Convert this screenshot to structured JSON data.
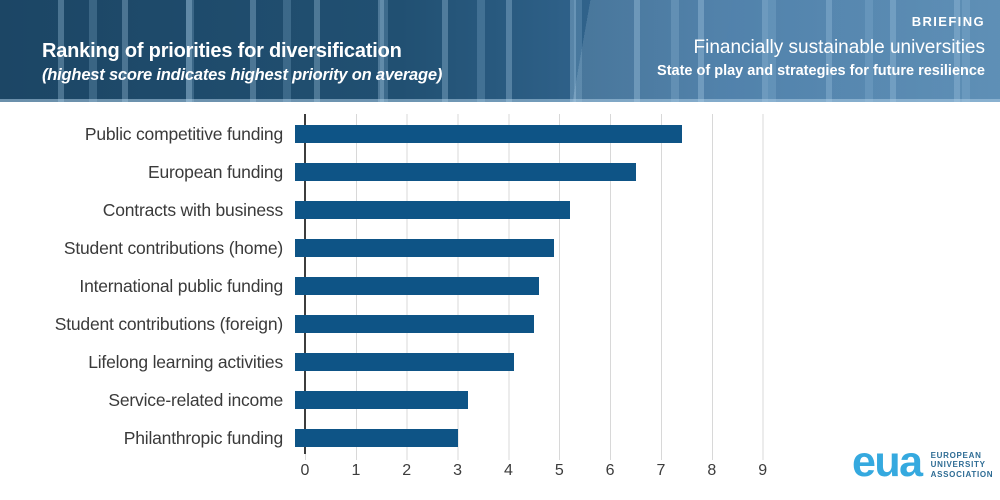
{
  "header": {
    "kicker": "BRIEFING",
    "title": "Ranking of priorities for diversification",
    "subtitle": "(highest score indicates highest priority on average)",
    "publication_title": "Financially sustainable universities",
    "publication_subtitle": "State of play and strategies for future resilience"
  },
  "chart_data": {
    "type": "bar",
    "orientation": "horizontal",
    "title": "Ranking of priorities for diversification",
    "subtitle": "(highest score indicates highest priority on average)",
    "categories": [
      "Public competitive funding",
      "European funding",
      "Contracts with business",
      "Student contributions (home)",
      "International public funding",
      "Student contributions (foreign)",
      "Lifelong learning activities",
      "Service-related income",
      "Philanthropic funding"
    ],
    "values": [
      7.6,
      6.7,
      5.4,
      5.1,
      4.8,
      4.7,
      4.3,
      3.4,
      3.2
    ],
    "xlabel": "",
    "ylabel": "",
    "xlim": [
      0,
      9
    ],
    "xticks": [
      "0",
      "1",
      "2",
      "3",
      "4",
      "5",
      "6",
      "7",
      "8",
      "9"
    ],
    "grid": true,
    "bar_color": "#0e5486",
    "gridline_color": "#d8d8d8",
    "axis_color": "#3d3d3d",
    "label_color": "#3a3a3a"
  },
  "footer": {
    "logo_text": "eua",
    "logo_caption_lines": [
      "EUROPEAN",
      "UNIVERSITY",
      "ASSOCIATION"
    ],
    "logo_color": "#35a9df",
    "caption_color": "#2e6c94"
  },
  "colors": {
    "header_bg_left": "#1c4665",
    "header_bg_right": "#4d82ab",
    "header_text": "#ffffff"
  }
}
